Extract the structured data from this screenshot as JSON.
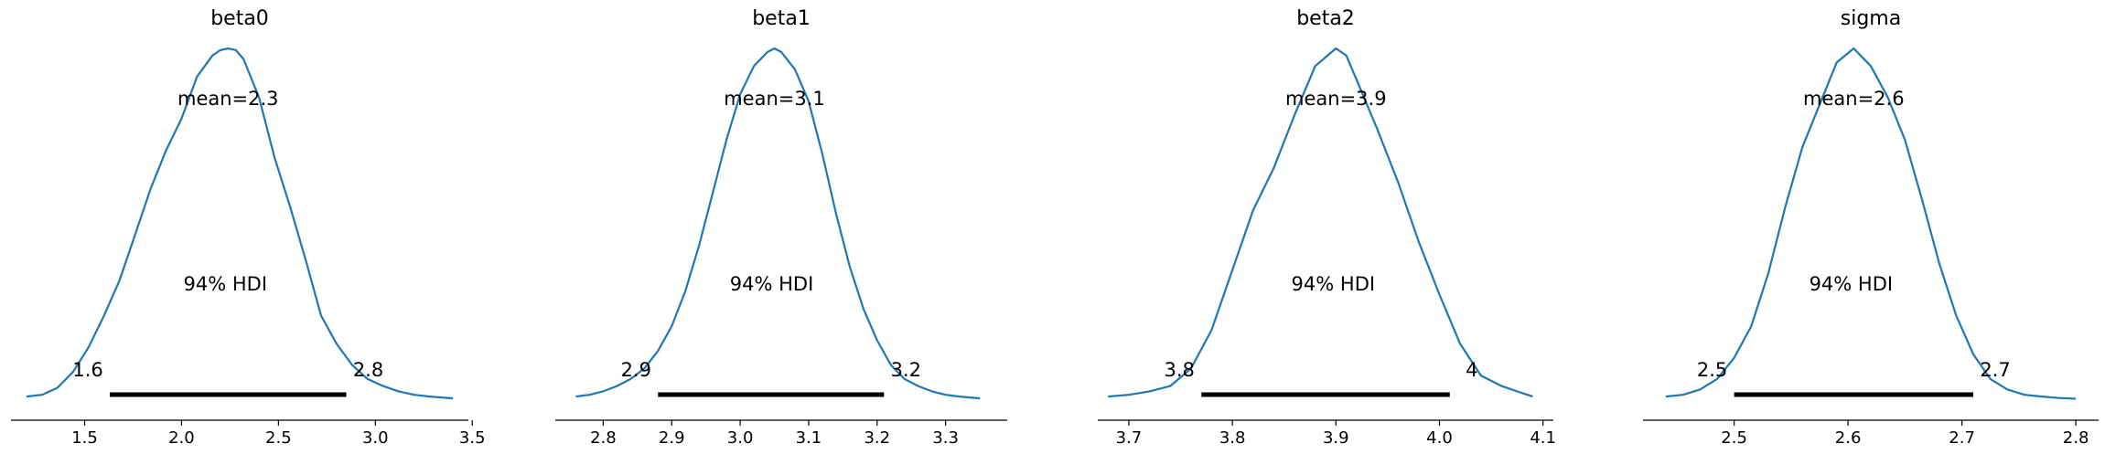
{
  "chart_data": [
    {
      "type": "line",
      "title": "beta0",
      "mean_label": "mean=2.3",
      "hdi_label": "94% HDI",
      "hdi": [
        1.63,
        2.85
      ],
      "hdi_low_label": "1.6",
      "hdi_high_label": "2.8",
      "xlim": [
        1.12,
        3.48
      ],
      "ticks": [
        1.5,
        2.0,
        2.5,
        3.0,
        3.5
      ],
      "tick_labels": [
        "1.5",
        "2.0",
        "2.5",
        "3.0",
        "3.5"
      ],
      "density": {
        "x": [
          1.2,
          1.28,
          1.36,
          1.44,
          1.52,
          1.6,
          1.68,
          1.76,
          1.84,
          1.92,
          2.0,
          2.08,
          2.16,
          2.2,
          2.24,
          2.28,
          2.32,
          2.4,
          2.48,
          2.56,
          2.64,
          2.72,
          2.8,
          2.88,
          2.96,
          3.04,
          3.12,
          3.2,
          3.28,
          3.4
        ],
        "y": [
          0.01,
          0.015,
          0.035,
          0.08,
          0.15,
          0.24,
          0.34,
          0.47,
          0.6,
          0.71,
          0.8,
          0.92,
          0.98,
          0.995,
          1.0,
          0.995,
          0.97,
          0.86,
          0.69,
          0.55,
          0.4,
          0.24,
          0.16,
          0.1,
          0.06,
          0.04,
          0.025,
          0.015,
          0.01,
          0.005
        ]
      }
    },
    {
      "type": "line",
      "title": "beta1",
      "mean_label": "mean=3.1",
      "hdi_label": "94% HDI",
      "hdi": [
        2.88,
        3.21
      ],
      "hdi_low_label": "2.9",
      "hdi_high_label": "3.2",
      "xlim": [
        2.73,
        3.39
      ],
      "ticks": [
        2.8,
        2.9,
        3.0,
        3.1,
        3.2,
        3.3
      ],
      "tick_labels": [
        "2.8",
        "2.9",
        "3.0",
        "3.1",
        "3.2",
        "3.3"
      ],
      "density": {
        "x": [
          2.76,
          2.78,
          2.8,
          2.82,
          2.84,
          2.86,
          2.88,
          2.9,
          2.92,
          2.94,
          2.96,
          2.98,
          3.0,
          3.02,
          3.04,
          3.05,
          3.06,
          3.08,
          3.1,
          3.12,
          3.14,
          3.16,
          3.18,
          3.2,
          3.22,
          3.24,
          3.26,
          3.28,
          3.3,
          3.32,
          3.35
        ],
        "y": [
          0.01,
          0.015,
          0.025,
          0.04,
          0.06,
          0.09,
          0.14,
          0.21,
          0.31,
          0.44,
          0.59,
          0.74,
          0.87,
          0.95,
          0.99,
          1.0,
          0.99,
          0.94,
          0.85,
          0.7,
          0.53,
          0.38,
          0.26,
          0.17,
          0.1,
          0.06,
          0.04,
          0.025,
          0.015,
          0.01,
          0.005
        ]
      }
    },
    {
      "type": "line",
      "title": "beta2",
      "mean_label": "mean=3.9",
      "hdi_label": "94% HDI",
      "hdi": [
        3.77,
        4.01
      ],
      "hdi_low_label": "3.8",
      "hdi_high_label": "4",
      "xlim": [
        3.67,
        4.11
      ],
      "ticks": [
        3.7,
        3.8,
        3.9,
        4.0,
        4.1
      ],
      "tick_labels": [
        "3.7",
        "3.8",
        "3.9",
        "4.0",
        "4.1"
      ],
      "density": {
        "x": [
          3.68,
          3.7,
          3.72,
          3.74,
          3.76,
          3.78,
          3.8,
          3.82,
          3.84,
          3.86,
          3.88,
          3.9,
          3.91,
          3.92,
          3.94,
          3.96,
          3.98,
          4.0,
          4.02,
          4.04,
          4.06,
          4.08,
          4.09
        ],
        "y": [
          0.01,
          0.015,
          0.025,
          0.04,
          0.09,
          0.2,
          0.37,
          0.54,
          0.66,
          0.81,
          0.95,
          1.0,
          0.98,
          0.91,
          0.77,
          0.62,
          0.45,
          0.3,
          0.16,
          0.07,
          0.04,
          0.02,
          0.01
        ]
      }
    },
    {
      "type": "line",
      "title": "sigma",
      "mean_label": "mean=2.6",
      "hdi_label": "94% HDI",
      "hdi": [
        2.5,
        2.71
      ],
      "hdi_low_label": "2.5",
      "hdi_high_label": "2.7",
      "xlim": [
        2.42,
        2.82
      ],
      "ticks": [
        2.5,
        2.6,
        2.7,
        2.8
      ],
      "tick_labels": [
        "2.5",
        "2.6",
        "2.7",
        "2.8"
      ],
      "density": {
        "x": [
          2.44,
          2.455,
          2.47,
          2.485,
          2.5,
          2.515,
          2.53,
          2.545,
          2.56,
          2.575,
          2.59,
          2.605,
          2.62,
          2.635,
          2.65,
          2.665,
          2.68,
          2.695,
          2.71,
          2.725,
          2.74,
          2.755,
          2.77,
          2.785,
          2.8
        ],
        "y": [
          0.01,
          0.015,
          0.03,
          0.06,
          0.12,
          0.21,
          0.36,
          0.55,
          0.72,
          0.84,
          0.96,
          1.0,
          0.95,
          0.86,
          0.74,
          0.57,
          0.39,
          0.24,
          0.13,
          0.06,
          0.03,
          0.015,
          0.01,
          0.006,
          0.004
        ]
      }
    }
  ]
}
